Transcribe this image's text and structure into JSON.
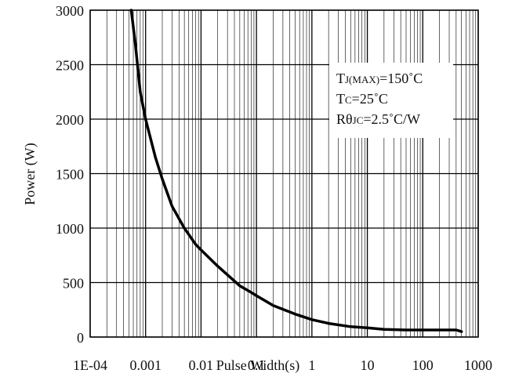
{
  "chart_data": {
    "type": "line",
    "title": "",
    "xlabel": "Pulse Width(s)",
    "ylabel": "Power (W)",
    "x_scale": "log",
    "xlim": [
      0.0001,
      1000
    ],
    "ylim": [
      0,
      3000
    ],
    "x_tick_labels": [
      "1E-04",
      "0.001",
      "0.01",
      "0.1",
      "1",
      "10",
      "100",
      "1000"
    ],
    "y_tick_labels": [
      "0",
      "500",
      "1000",
      "1500",
      "2000",
      "2500",
      "3000"
    ],
    "grid": true,
    "minor_grid_x": true,
    "legend": "none",
    "annotation": {
      "position": "top-right",
      "lines": [
        {
          "main": "T",
          "sub": "J(MAX)",
          "rest": "=150˚C"
        },
        {
          "main": "T",
          "sub": "C",
          "rest": "=25˚C"
        },
        {
          "main": "Rθ",
          "sub": "JC",
          "rest": "=2.5˚C/W"
        }
      ]
    },
    "series": [
      {
        "color": "#000000",
        "x": [
          0.00055,
          0.00065,
          0.0008,
          0.001,
          0.0015,
          0.002,
          0.003,
          0.005,
          0.008,
          0.01,
          0.02,
          0.05,
          0.08,
          0.1,
          0.2,
          0.5,
          1,
          2,
          5,
          10,
          20,
          50,
          100,
          200,
          300,
          400,
          500
        ],
        "y": [
          3000,
          2700,
          2250,
          2000,
          1650,
          1450,
          1200,
          1000,
          850,
          800,
          650,
          470,
          410,
          380,
          290,
          210,
          160,
          125,
          95,
          85,
          70,
          65,
          65,
          65,
          65,
          65,
          50
        ]
      }
    ]
  }
}
